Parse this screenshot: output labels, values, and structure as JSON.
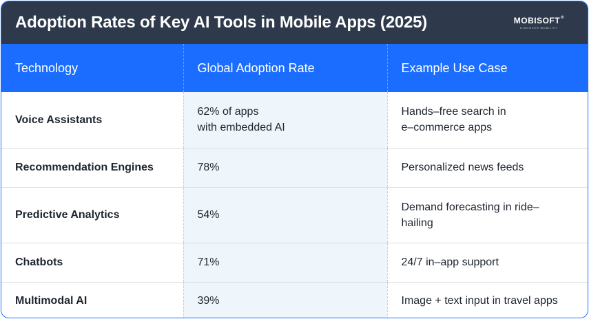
{
  "header": {
    "title": "Adoption Rates of Key AI Tools in Mobile Apps (2025)",
    "logo_text": "MOBISOFT",
    "logo_tm": "®",
    "logo_tagline": "DISCOVER MOBILITY"
  },
  "table": {
    "columns": [
      "Technology",
      "Global Adoption Rate",
      "Example Use Case"
    ],
    "rows": [
      {
        "technology": "Voice Assistants",
        "rate": [
          "62% of apps",
          "with embedded AI"
        ],
        "use_case": [
          "Hands–free search in",
          "e–commerce apps"
        ]
      },
      {
        "technology": "Recommendation Engines",
        "rate": [
          "78%"
        ],
        "use_case": [
          "Personalized news feeds"
        ]
      },
      {
        "technology": "Predictive Analytics",
        "rate": [
          "54%"
        ],
        "use_case": [
          "Demand forecasting in ride–",
          "hailing"
        ]
      },
      {
        "technology": "Chatbots",
        "rate": [
          "71%"
        ],
        "use_case": [
          "24/7 in–app support"
        ]
      },
      {
        "technology": "Multimodal AI",
        "rate": [
          "39%"
        ],
        "use_case": [
          "Image + text input in travel apps"
        ]
      }
    ]
  },
  "colors": {
    "title_bg": "#2e3a4b",
    "header_bg": "#1a6dff",
    "rate_col_bg": "#eef6fc",
    "border": "#1a6dff"
  }
}
